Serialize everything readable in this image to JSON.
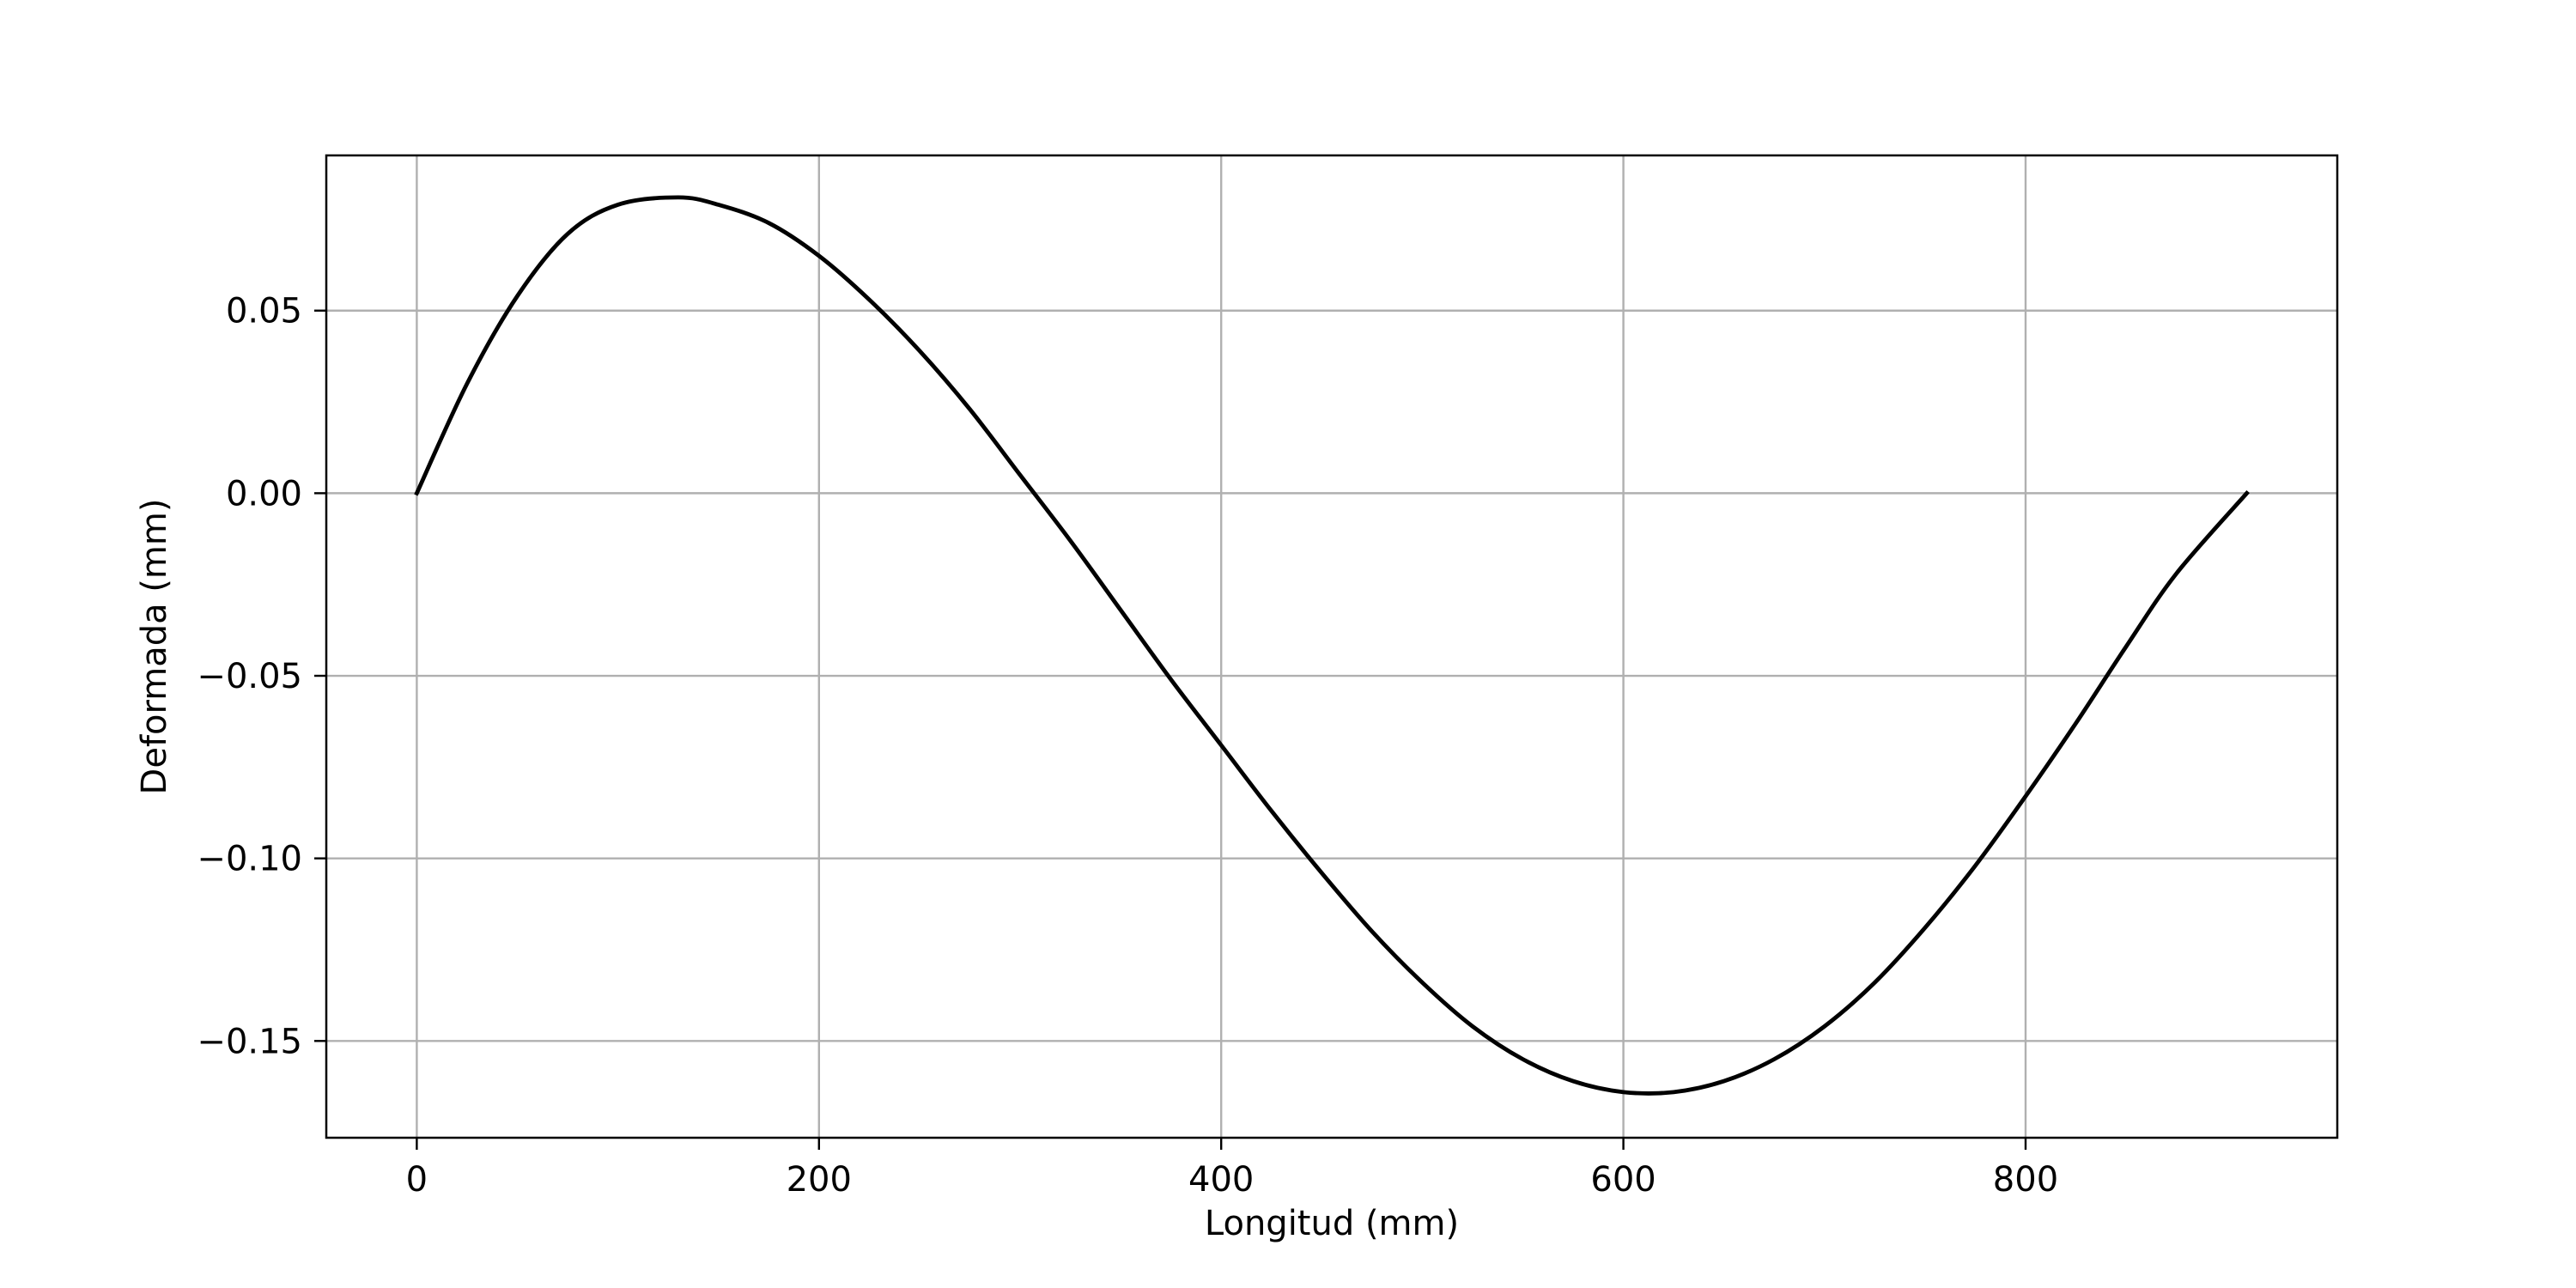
{
  "chart_data": {
    "type": "line",
    "title": "",
    "xlabel": "Longitud (mm)",
    "ylabel": "Deformada (mm)",
    "xlim": [
      -45,
      955
    ],
    "ylim": [
      -0.1765,
      0.0925
    ],
    "xticks": [
      0,
      200,
      400,
      600,
      800
    ],
    "xtick_labels": [
      "0",
      "200",
      "400",
      "600",
      "800"
    ],
    "yticks": [
      0.05,
      0.0,
      -0.05,
      -0.1,
      -0.15
    ],
    "ytick_labels": [
      "0.05",
      "0.00",
      "−0.05",
      "−0.10",
      "−0.15"
    ],
    "grid": true,
    "legend": "none",
    "series": [
      {
        "color": "#000000",
        "x": [
          0,
          25,
          50,
          75,
          100,
          130,
          150,
          175,
          200,
          225,
          250,
          275,
          300,
          325,
          350,
          375,
          400,
          425,
          450,
          475,
          500,
          525,
          550,
          575,
          600,
          625,
          650,
          675,
          700,
          725,
          750,
          775,
          800,
          825,
          850,
          875,
          910
        ],
        "y": [
          0.0,
          0.03,
          0.054,
          0.071,
          0.079,
          0.081,
          0.079,
          0.074,
          0.065,
          0.053,
          0.039,
          0.023,
          0.005,
          -0.013,
          -0.032,
          -0.051,
          -0.069,
          -0.087,
          -0.104,
          -0.12,
          -0.134,
          -0.146,
          -0.155,
          -0.161,
          -0.164,
          -0.164,
          -0.161,
          -0.155,
          -0.146,
          -0.134,
          -0.119,
          -0.102,
          -0.083,
          -0.063,
          -0.042,
          -0.022,
          0.0
        ]
      }
    ]
  }
}
